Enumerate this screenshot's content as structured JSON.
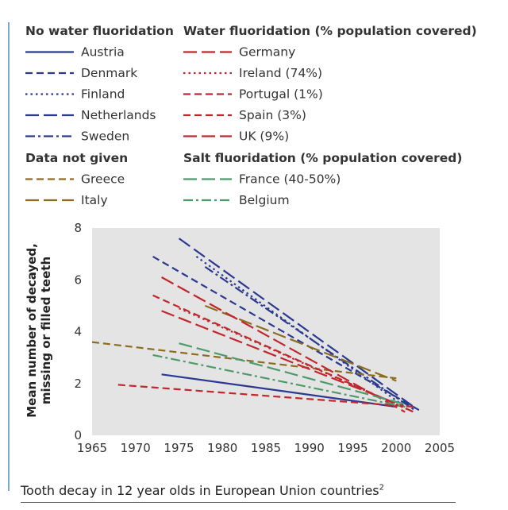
{
  "chart_data": {
    "type": "line",
    "title": "Tooth decay in 12 year olds in European Union countries",
    "title_superscript": "2",
    "xlabel": "",
    "ylabel": [
      "Mean number of decayed,",
      "missing or filled teeth"
    ],
    "xlim": [
      1965,
      2005
    ],
    "ylim": [
      0,
      8
    ],
    "x_ticks": [
      1965,
      1970,
      1975,
      1980,
      1985,
      1990,
      1995,
      2000,
      2005
    ],
    "y_ticks": [
      0,
      2,
      4,
      6,
      8
    ],
    "grid": false,
    "legend_groups": [
      {
        "heading": "No water fluoridation",
        "entries": [
          "Austria",
          "Denmark",
          "Finland",
          "Netherlands",
          "Sweden"
        ]
      },
      {
        "heading": "Data not given",
        "entries": [
          "Greece",
          "Italy"
        ]
      },
      {
        "heading": "Water fluoridation (% population covered)",
        "entries": [
          "Germany",
          "Ireland (74%)",
          "Portugal (1%)",
          "Spain (3%)",
          "UK (9%)"
        ]
      },
      {
        "heading": "Salt fluoridation (% population covered)",
        "entries": [
          "France (40-50%)",
          "Belgium"
        ]
      }
    ],
    "series": [
      {
        "name": "Austria",
        "color": "#2b3990",
        "dash": "solid",
        "x": [
          1973,
          2000
        ],
        "y": [
          2.35,
          1.1
        ]
      },
      {
        "name": "Denmark",
        "color": "#2b3990",
        "dash": "dash",
        "x": [
          1972,
          2003
        ],
        "y": [
          6.9,
          0.9
        ]
      },
      {
        "name": "Finland",
        "color": "#2b3990",
        "dash": "dot",
        "x": [
          1977,
          2001
        ],
        "y": [
          6.9,
          1.1
        ]
      },
      {
        "name": "Netherlands",
        "color": "#2b3990",
        "dash": "longdash",
        "x": [
          1975,
          2002
        ],
        "y": [
          7.6,
          1.1
        ]
      },
      {
        "name": "Sweden",
        "color": "#2b3990",
        "dash": "dashdot",
        "x": [
          1978,
          2002
        ],
        "y": [
          6.5,
          1.0
        ]
      },
      {
        "name": "Greece",
        "color": "#8c6d1f",
        "dash": "dash",
        "x": [
          1965,
          2000
        ],
        "y": [
          3.6,
          2.2
        ]
      },
      {
        "name": "Italy",
        "color": "#8c6d1f",
        "dash": "longdash",
        "x": [
          1978,
          2000
        ],
        "y": [
          5.0,
          2.1
        ]
      },
      {
        "name": "Germany",
        "color": "#c1272d",
        "dash": "longdash",
        "x": [
          1973,
          2001
        ],
        "y": [
          4.8,
          1.1
        ]
      },
      {
        "name": "Ireland (74%)",
        "color": "#c1272d",
        "dash": "dot",
        "x": [
          1975,
          2002
        ],
        "y": [
          4.9,
          0.9
        ]
      },
      {
        "name": "Portugal (1%)",
        "color": "#c1272d",
        "dash": "dash",
        "x": [
          1968,
          2002
        ],
        "y": [
          1.95,
          1.1
        ]
      },
      {
        "name": "Spain (3%)",
        "color": "#c1272d",
        "dash": "dash",
        "x": [
          1972,
          2002
        ],
        "y": [
          5.4,
          0.9
        ]
      },
      {
        "name": "UK (9%)",
        "color": "#c1272d",
        "dash": "longdash",
        "x": [
          1973,
          2001
        ],
        "y": [
          6.1,
          0.9
        ]
      },
      {
        "name": "France (40-50%)",
        "color": "#4d9a6a",
        "dash": "longdash",
        "x": [
          1975,
          2001
        ],
        "y": [
          3.55,
          1.2
        ]
      },
      {
        "name": "Belgium",
        "color": "#4d9a6a",
        "dash": "dashdot",
        "x": [
          1972,
          2001
        ],
        "y": [
          3.1,
          1.1
        ]
      }
    ]
  }
}
